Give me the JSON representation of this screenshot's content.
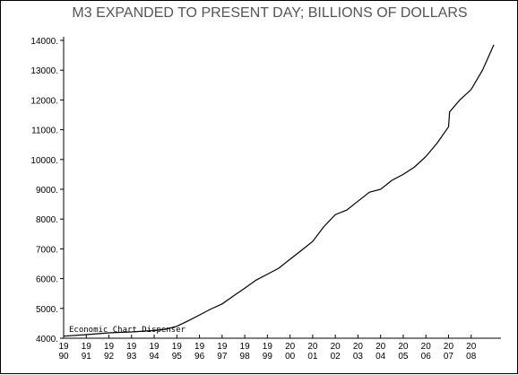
{
  "chart_data": {
    "type": "line",
    "title": "M3 EXPANDED TO PRESENT DAY; BILLIONS OF DOLLARS",
    "xlabel": "",
    "ylabel": "",
    "credit": "Economic Chart Dispenser",
    "ylim": [
      4000,
      14000
    ],
    "xlim": [
      1990,
      2009
    ],
    "y_ticks": [
      "4000.",
      "5000.",
      "6000.",
      "7000.",
      "8000.",
      "9000.",
      "10000.",
      "11000.",
      "12000.",
      "13000.",
      "14000."
    ],
    "x_ticks": [
      {
        "top": "19",
        "bottom": "90"
      },
      {
        "top": "19",
        "bottom": "91"
      },
      {
        "top": "19",
        "bottom": "92"
      },
      {
        "top": "19",
        "bottom": "93"
      },
      {
        "top": "19",
        "bottom": "94"
      },
      {
        "top": "19",
        "bottom": "95"
      },
      {
        "top": "19",
        "bottom": "96"
      },
      {
        "top": "19",
        "bottom": "97"
      },
      {
        "top": "19",
        "bottom": "98"
      },
      {
        "top": "19",
        "bottom": "99"
      },
      {
        "top": "20",
        "bottom": "00"
      },
      {
        "top": "20",
        "bottom": "01"
      },
      {
        "top": "20",
        "bottom": "02"
      },
      {
        "top": "20",
        "bottom": "03"
      },
      {
        "top": "20",
        "bottom": "04"
      },
      {
        "top": "20",
        "bottom": "05"
      },
      {
        "top": "20",
        "bottom": "06"
      },
      {
        "top": "20",
        "bottom": "07"
      },
      {
        "top": "20",
        "bottom": "08"
      }
    ],
    "grid": false,
    "series": [
      {
        "x": [
          1990.0,
          1991.0,
          1992.0,
          1993.0,
          1994.0,
          1994.5,
          1995.0,
          1995.5,
          1996.0,
          1996.5,
          1997.0,
          1997.5,
          1998.0,
          1998.5,
          1999.0,
          1999.5,
          2000.0,
          2000.5,
          2001.0,
          2001.5,
          2002.0,
          2002.5,
          2003.0,
          2003.5,
          2004.0,
          2004.5,
          2005.0,
          2005.5,
          2006.0,
          2006.5,
          2007.0,
          2007.05,
          2007.5,
          2008.0,
          2008.5,
          2009.0
        ],
        "y": [
          4070,
          4120,
          4180,
          4210,
          4260,
          4300,
          4400,
          4580,
          4780,
          4980,
          5150,
          5420,
          5680,
          5950,
          6150,
          6350,
          6650,
          6950,
          7250,
          7750,
          8150,
          8300,
          8600,
          8900,
          9000,
          9300,
          9500,
          9750,
          10100,
          10550,
          11100,
          11600,
          12000,
          12350,
          13000,
          13850
        ]
      }
    ]
  }
}
